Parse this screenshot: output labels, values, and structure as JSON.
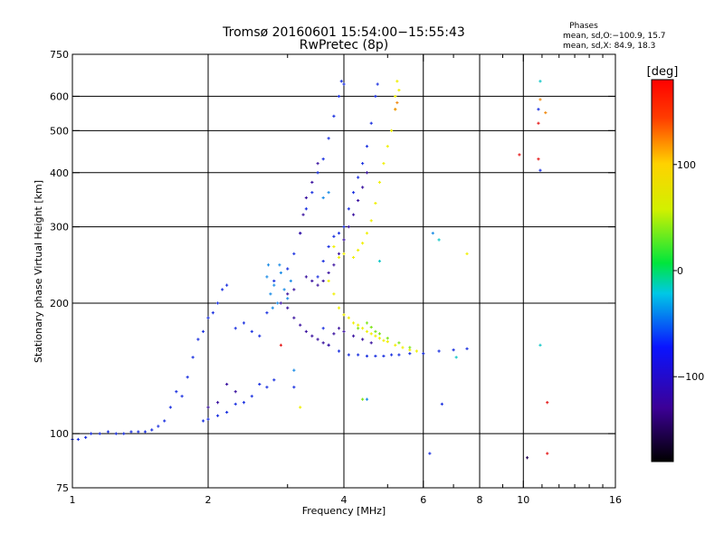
{
  "chart_data": {
    "type": "scatter",
    "title": "Tromsø 20160601 15:54:00−15:55:43",
    "subtitle": "RwPretec (8p)",
    "xlabel": "Frequency [MHz]",
    "ylabel": "Stationary phase Virtual Height [km]",
    "xscale": "log",
    "yscale": "log",
    "xlim": [
      1,
      16
    ],
    "ylim": [
      75,
      750
    ],
    "xticks": [
      1,
      2,
      4,
      6,
      8,
      10,
      16
    ],
    "xminor": [
      3,
      5,
      7,
      9,
      11,
      12,
      13,
      14,
      15
    ],
    "yticks": [
      75,
      100,
      200,
      300,
      400,
      500,
      600,
      750
    ],
    "grid": true,
    "grid_x": [
      2,
      4,
      6,
      8,
      10
    ],
    "grid_y": [
      100,
      200,
      300,
      400,
      500,
      600
    ],
    "stats": {
      "heading": "Phases",
      "line1": "mean, sd,O:−100.9, 15.7",
      "line2": "mean, sd,X:  84.9, 18.3"
    },
    "colorbar": {
      "label": "[deg]",
      "range": [
        -180,
        180
      ],
      "ticks": [
        100,
        0,
        -100
      ]
    },
    "series": [
      {
        "phase": -100,
        "color": "#1a30e0",
        "points": [
          [
            1.0,
            97
          ],
          [
            1.03,
            97
          ],
          [
            1.07,
            98
          ],
          [
            1.1,
            100
          ],
          [
            1.15,
            100
          ],
          [
            1.2,
            101
          ],
          [
            1.25,
            100
          ],
          [
            1.3,
            100
          ],
          [
            1.35,
            101
          ],
          [
            1.4,
            101
          ],
          [
            1.45,
            101
          ],
          [
            1.5,
            102
          ],
          [
            1.55,
            104
          ],
          [
            1.6,
            107
          ],
          [
            1.65,
            115
          ],
          [
            1.7,
            125
          ],
          [
            1.75,
            122
          ],
          [
            1.8,
            135
          ],
          [
            1.85,
            150
          ],
          [
            1.9,
            165
          ],
          [
            1.95,
            172
          ],
          [
            2.0,
            185
          ],
          [
            2.05,
            190
          ],
          [
            2.1,
            200
          ],
          [
            2.15,
            215
          ],
          [
            2.2,
            220
          ],
          [
            2.3,
            175
          ],
          [
            2.4,
            180
          ],
          [
            2.5,
            172
          ],
          [
            2.6,
            168
          ],
          [
            2.7,
            190
          ],
          [
            2.8,
            225
          ],
          [
            3.0,
            240
          ],
          [
            3.1,
            260
          ],
          [
            3.2,
            290
          ],
          [
            3.3,
            330
          ],
          [
            3.4,
            360
          ],
          [
            3.5,
            400
          ],
          [
            3.6,
            430
          ],
          [
            3.7,
            480
          ],
          [
            3.8,
            540
          ],
          [
            3.9,
            600
          ],
          [
            4.0,
            640
          ],
          [
            3.95,
            650
          ],
          [
            3.6,
            175
          ],
          [
            3.7,
            160
          ],
          [
            3.9,
            155
          ],
          [
            4.1,
            152
          ],
          [
            4.3,
            152
          ],
          [
            4.5,
            151
          ],
          [
            4.7,
            151
          ],
          [
            4.9,
            151
          ],
          [
            5.1,
            152
          ],
          [
            5.3,
            152
          ],
          [
            5.6,
            153
          ],
          [
            6.0,
            153
          ],
          [
            6.5,
            155
          ],
          [
            7.0,
            156
          ],
          [
            7.5,
            157
          ],
          [
            2.6,
            130
          ],
          [
            2.7,
            128
          ],
          [
            2.8,
            133
          ],
          [
            2.5,
            122
          ],
          [
            2.4,
            118
          ],
          [
            2.3,
            117
          ],
          [
            2.2,
            112
          ],
          [
            2.1,
            110
          ],
          [
            2.0,
            108
          ],
          [
            1.95,
            107
          ],
          [
            4.2,
            360
          ],
          [
            4.3,
            390
          ],
          [
            4.4,
            420
          ],
          [
            4.5,
            460
          ],
          [
            4.6,
            520
          ],
          [
            4.7,
            600
          ],
          [
            4.75,
            640
          ],
          [
            4.1,
            330
          ],
          [
            4.0,
            300
          ],
          [
            3.9,
            290
          ],
          [
            3.8,
            285
          ],
          [
            3.7,
            270
          ],
          [
            3.6,
            250
          ],
          [
            3.5,
            230
          ]
        ]
      },
      {
        "phase": -145,
        "color": "#3c14a0",
        "points": [
          [
            2.9,
            200
          ],
          [
            3.0,
            195
          ],
          [
            3.1,
            185
          ],
          [
            3.2,
            178
          ],
          [
            3.3,
            172
          ],
          [
            3.4,
            168
          ],
          [
            3.5,
            165
          ],
          [
            3.6,
            162
          ],
          [
            3.7,
            160
          ],
          [
            3.8,
            170
          ],
          [
            3.9,
            175
          ],
          [
            4.0,
            172
          ],
          [
            4.2,
            168
          ],
          [
            4.4,
            165
          ],
          [
            4.6,
            162
          ],
          [
            3.3,
            230
          ],
          [
            3.4,
            225
          ],
          [
            3.5,
            220
          ],
          [
            3.6,
            225
          ],
          [
            3.7,
            235
          ],
          [
            3.8,
            245
          ],
          [
            3.9,
            260
          ],
          [
            4.0,
            280
          ],
          [
            4.1,
            300
          ],
          [
            4.2,
            320
          ],
          [
            4.3,
            345
          ],
          [
            4.4,
            370
          ],
          [
            4.5,
            400
          ],
          [
            3.5,
            420
          ],
          [
            3.4,
            380
          ],
          [
            3.3,
            350
          ],
          [
            3.25,
            320
          ],
          [
            3.2,
            290
          ],
          [
            2.2,
            130
          ],
          [
            2.3,
            125
          ],
          [
            2.1,
            118
          ],
          [
            2.0,
            115
          ],
          [
            3.0,
            210
          ],
          [
            3.1,
            215
          ]
        ]
      },
      {
        "phase": -70,
        "color": "#1a8ce6",
        "points": [
          [
            2.7,
            230
          ],
          [
            2.75,
            210
          ],
          [
            2.8,
            220
          ],
          [
            2.85,
            200
          ],
          [
            2.9,
            235
          ],
          [
            2.95,
            215
          ],
          [
            3.0,
            205
          ],
          [
            3.05,
            225
          ],
          [
            2.72,
            245
          ],
          [
            2.78,
            195
          ],
          [
            2.88,
            245
          ],
          [
            3.6,
            350
          ],
          [
            3.7,
            360
          ],
          [
            6.3,
            290
          ],
          [
            4.5,
            120
          ],
          [
            3.1,
            140
          ]
        ]
      },
      {
        "phase": 110,
        "color": "#f0f000",
        "points": [
          [
            3.7,
            225
          ],
          [
            3.8,
            210
          ],
          [
            3.9,
            195
          ],
          [
            4.0,
            188
          ],
          [
            4.1,
            185
          ],
          [
            4.2,
            180
          ],
          [
            4.3,
            178
          ],
          [
            4.4,
            175
          ],
          [
            4.5,
            172
          ],
          [
            4.6,
            170
          ],
          [
            4.7,
            168
          ],
          [
            4.8,
            166
          ],
          [
            4.9,
            164
          ],
          [
            5.0,
            163
          ],
          [
            5.2,
            160
          ],
          [
            5.4,
            158
          ],
          [
            5.6,
            156
          ],
          [
            5.8,
            155
          ],
          [
            4.2,
            255
          ],
          [
            4.3,
            265
          ],
          [
            4.4,
            275
          ],
          [
            4.5,
            290
          ],
          [
            4.6,
            310
          ],
          [
            4.7,
            340
          ],
          [
            4.8,
            380
          ],
          [
            4.9,
            420
          ],
          [
            5.0,
            460
          ],
          [
            5.1,
            500
          ],
          [
            5.2,
            560
          ],
          [
            5.3,
            620
          ],
          [
            4.0,
            260
          ],
          [
            3.9,
            255
          ],
          [
            3.8,
            270
          ],
          [
            5.2,
            600
          ],
          [
            5.25,
            650
          ],
          [
            3.2,
            115
          ],
          [
            7.5,
            260
          ]
        ]
      },
      {
        "phase": 55,
        "color": "#7de61a",
        "points": [
          [
            4.5,
            180
          ],
          [
            4.6,
            176
          ],
          [
            4.7,
            172
          ],
          [
            4.8,
            170
          ],
          [
            5.0,
            166
          ],
          [
            5.3,
            162
          ],
          [
            5.6,
            158
          ],
          [
            4.4,
            120
          ],
          [
            4.3,
            175
          ]
        ]
      },
      {
        "phase": 160,
        "color": "#e61a1a",
        "points": [
          [
            9.8,
            440
          ],
          [
            10.8,
            520
          ],
          [
            10.8,
            430
          ],
          [
            11.3,
            118
          ],
          [
            11.3,
            90
          ],
          [
            2.9,
            160
          ]
        ]
      },
      {
        "phase": 140,
        "color": "#f08c14",
        "points": [
          [
            10.9,
            590
          ],
          [
            11.2,
            550
          ],
          [
            5.2,
            560
          ],
          [
            5.25,
            580
          ]
        ]
      },
      {
        "phase": -20,
        "color": "#14c8c8",
        "points": [
          [
            10.9,
            650
          ],
          [
            10.9,
            160
          ],
          [
            6.5,
            280
          ],
          [
            7.1,
            150
          ],
          [
            4.8,
            250
          ]
        ]
      },
      {
        "phase": -160,
        "color": "#200050",
        "points": [
          [
            10.2,
            88
          ]
        ]
      },
      {
        "phase": -100,
        "color": "#1a30e0",
        "points": [
          [
            10.8,
            560
          ],
          [
            10.9,
            405
          ],
          [
            6.2,
            90
          ],
          [
            6.6,
            117
          ],
          [
            3.1,
            128
          ]
        ]
      }
    ]
  }
}
